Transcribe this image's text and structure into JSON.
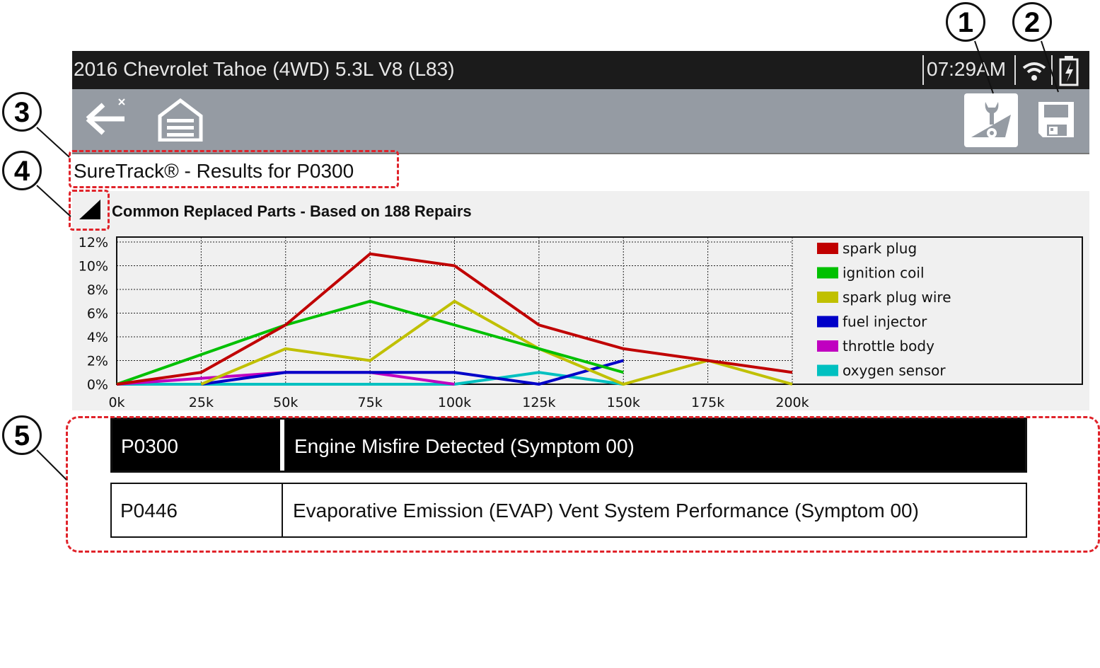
{
  "status_bar": {
    "vehicle": "2016 Chevrolet Tahoe (4WD) 5.3L V8 (L83)",
    "time": "07:29AM",
    "icons": [
      "wifi-icon",
      "battery-charging-icon"
    ]
  },
  "toolbar": {
    "left_icons": [
      "back-icon",
      "home-garage-icon"
    ],
    "right_icons": [
      "suretrack-tool-icon",
      "save-icon"
    ]
  },
  "page_title": "SureTrack® - Results for P0300",
  "chart_section": {
    "collapse_icon": "triangle-collapse-icon",
    "title": "Common Replaced Parts - Based on 188 Repairs"
  },
  "chart_data": {
    "type": "line",
    "title": "Common Replaced Parts - Based on 188 Repairs",
    "x": [
      0,
      25,
      50,
      75,
      100,
      125,
      150,
      175,
      200
    ],
    "x_tick_labels": [
      "0k",
      "25k",
      "50k",
      "75k",
      "100k",
      "125k",
      "150k",
      "175k",
      "200k"
    ],
    "y_tick_labels": [
      "0%",
      "2%",
      "4%",
      "6%",
      "8%",
      "10%",
      "12%"
    ],
    "ylim": [
      0,
      12
    ],
    "xlim": [
      0,
      200
    ],
    "grid": true,
    "legend_position": "right",
    "series": [
      {
        "name": "spark plug",
        "color": "#c00000",
        "x": [
          0,
          25,
          50,
          75,
          100,
          125,
          150,
          175,
          200
        ],
        "values": [
          0,
          1,
          5,
          11,
          10,
          5,
          3,
          2,
          1
        ]
      },
      {
        "name": "ignition coil",
        "color": "#00c000",
        "x": [
          0,
          25,
          50,
          75,
          100,
          125,
          150
        ],
        "values": [
          0,
          2.5,
          5,
          7,
          5,
          3,
          1
        ]
      },
      {
        "name": "spark plug wire",
        "color": "#c0c000",
        "x": [
          25,
          50,
          75,
          100,
          125,
          150,
          175,
          200
        ],
        "values": [
          0,
          3,
          2,
          7,
          3,
          0,
          2,
          0
        ]
      },
      {
        "name": "fuel injector",
        "color": "#0000c8",
        "x": [
          25,
          50,
          75,
          100,
          125,
          150
        ],
        "values": [
          0,
          1,
          1,
          1,
          0,
          2
        ]
      },
      {
        "name": "throttle body",
        "color": "#c000c0",
        "x": [
          0,
          25,
          50,
          75,
          100
        ],
        "values": [
          0,
          0.5,
          1,
          1,
          0
        ]
      },
      {
        "name": "oxygen sensor",
        "color": "#00c0c0",
        "x": [
          0,
          25,
          50,
          75,
          100,
          125,
          150
        ],
        "values": [
          0,
          0,
          0,
          0,
          0,
          1,
          0
        ]
      }
    ]
  },
  "codes": [
    {
      "code": "P0300",
      "description": "Engine Misfire Detected (Symptom 00)",
      "selected": true
    },
    {
      "code": "P0446",
      "description": "Evaporative Emission (EVAP) Vent System Performance (Symptom 00)",
      "selected": false
    }
  ],
  "callouts": [
    "1",
    "2",
    "3",
    "4",
    "5"
  ]
}
